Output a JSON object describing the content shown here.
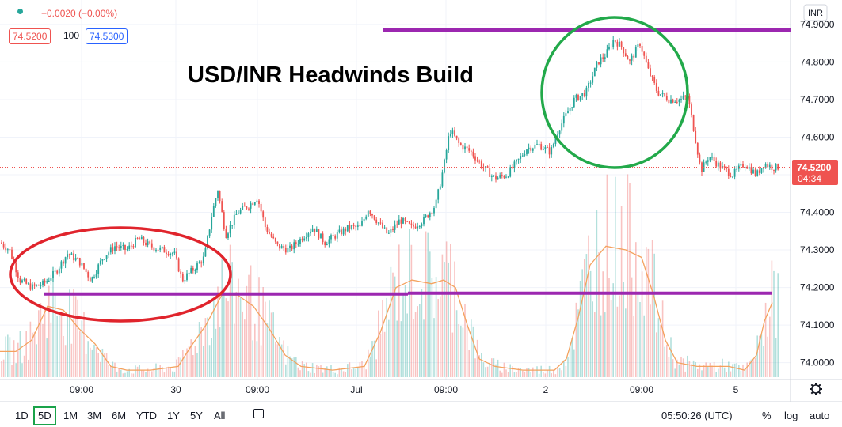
{
  "header": {
    "change": "−0.0020 (−0.00%)",
    "bid": "74.5200",
    "spread": "100",
    "ask": "74.5300"
  },
  "currency_badge": "INR",
  "price_tag": {
    "price": "74.5200",
    "countdown": "04:34"
  },
  "toolbar": {
    "timeframes": [
      "1D",
      "5D",
      "1M",
      "3M",
      "6M",
      "YTD",
      "1Y",
      "5Y",
      "All"
    ],
    "active": "5D",
    "time": "05:50:26 (UTC)",
    "percent": "%",
    "log": "log",
    "auto": "auto"
  },
  "colors": {
    "up": "#26a69a",
    "down": "#ef5350",
    "annotation_purple": "#9c27b0",
    "circle_red": "#e0242c",
    "circle_green": "#22a94a",
    "ma_line": "#f4a25e"
  },
  "chart_data": {
    "type": "candlestick",
    "title": "USD/INR Headwinds Build",
    "y_ticks": [
      74.0,
      74.1,
      74.2,
      74.3,
      74.4,
      74.5,
      74.6,
      74.7,
      74.8,
      74.9
    ],
    "y_tick_labels": [
      "74.0000",
      "74.1000",
      "74.2000",
      "74.3000",
      "74.4000",
      "74.5000",
      "74.6000",
      "74.7000",
      "74.8000",
      "74.9000"
    ],
    "ylim": [
      73.955,
      74.965
    ],
    "x_tick_labels": [
      "09:00",
      "30",
      "09:00",
      "Jul",
      "09:00",
      "2",
      "09:00",
      "5"
    ],
    "last_price": 74.52,
    "price_path": [
      [
        0,
        74.32
      ],
      [
        12,
        74.3
      ],
      [
        25,
        74.22
      ],
      [
        40,
        74.2
      ],
      [
        55,
        74.21
      ],
      [
        70,
        74.24
      ],
      [
        85,
        74.29
      ],
      [
        100,
        74.27
      ],
      [
        115,
        74.22
      ],
      [
        130,
        74.28
      ],
      [
        145,
        74.31
      ],
      [
        160,
        74.3
      ],
      [
        175,
        74.33
      ],
      [
        190,
        74.31
      ],
      [
        205,
        74.3
      ],
      [
        220,
        74.29
      ],
      [
        230,
        74.22
      ],
      [
        245,
        74.25
      ],
      [
        258,
        74.28
      ],
      [
        268,
        74.4
      ],
      [
        275,
        74.46
      ],
      [
        285,
        74.34
      ],
      [
        300,
        74.4
      ],
      [
        315,
        74.42
      ],
      [
        325,
        74.44
      ],
      [
        335,
        74.36
      ],
      [
        350,
        74.31
      ],
      [
        365,
        74.3
      ],
      [
        380,
        74.33
      ],
      [
        395,
        74.36
      ],
      [
        410,
        74.32
      ],
      [
        425,
        74.34
      ],
      [
        440,
        74.36
      ],
      [
        455,
        74.36
      ],
      [
        465,
        74.41
      ],
      [
        475,
        74.38
      ],
      [
        490,
        74.34
      ],
      [
        505,
        74.38
      ],
      [
        520,
        74.36
      ],
      [
        535,
        74.38
      ],
      [
        550,
        74.42
      ],
      [
        560,
        74.52
      ],
      [
        568,
        74.62
      ],
      [
        580,
        74.58
      ],
      [
        595,
        74.56
      ],
      [
        610,
        74.52
      ],
      [
        625,
        74.49
      ],
      [
        640,
        74.5
      ],
      [
        655,
        74.54
      ],
      [
        665,
        74.57
      ],
      [
        680,
        74.58
      ],
      [
        695,
        74.56
      ],
      [
        705,
        74.62
      ],
      [
        715,
        74.66
      ],
      [
        725,
        74.7
      ],
      [
        740,
        74.72
      ],
      [
        755,
        74.8
      ],
      [
        765,
        74.82
      ],
      [
        775,
        74.86
      ],
      [
        785,
        74.84
      ],
      [
        795,
        74.8
      ],
      [
        808,
        74.85
      ],
      [
        818,
        74.78
      ],
      [
        830,
        74.72
      ],
      [
        845,
        74.7
      ],
      [
        860,
        74.7
      ],
      [
        868,
        74.71
      ],
      [
        876,
        74.62
      ],
      [
        885,
        74.51
      ],
      [
        895,
        74.55
      ],
      [
        910,
        74.52
      ],
      [
        925,
        74.5
      ],
      [
        940,
        74.53
      ],
      [
        955,
        74.5
      ],
      [
        965,
        74.53
      ],
      [
        975,
        74.52
      ],
      [
        984,
        74.52
      ]
    ],
    "volume_ma": [
      [
        0,
        74.03
      ],
      [
        20,
        74.03
      ],
      [
        40,
        74.06
      ],
      [
        60,
        74.15
      ],
      [
        80,
        74.14
      ],
      [
        100,
        74.09
      ],
      [
        120,
        74.05
      ],
      [
        140,
        73.99
      ],
      [
        160,
        73.98
      ],
      [
        190,
        73.98
      ],
      [
        225,
        73.99
      ],
      [
        240,
        74.04
      ],
      [
        260,
        74.1
      ],
      [
        280,
        74.18
      ],
      [
        300,
        74.18
      ],
      [
        320,
        74.15
      ],
      [
        340,
        74.09
      ],
      [
        360,
        74.02
      ],
      [
        380,
        73.99
      ],
      [
        420,
        73.98
      ],
      [
        460,
        73.99
      ],
      [
        480,
        74.08
      ],
      [
        500,
        74.2
      ],
      [
        520,
        74.22
      ],
      [
        545,
        74.21
      ],
      [
        560,
        74.22
      ],
      [
        575,
        74.2
      ],
      [
        590,
        74.1
      ],
      [
        605,
        74.01
      ],
      [
        625,
        73.99
      ],
      [
        660,
        73.98
      ],
      [
        700,
        73.98
      ],
      [
        715,
        74.01
      ],
      [
        730,
        74.12
      ],
      [
        745,
        74.26
      ],
      [
        765,
        74.31
      ],
      [
        790,
        74.3
      ],
      [
        810,
        74.28
      ],
      [
        825,
        74.18
      ],
      [
        840,
        74.06
      ],
      [
        855,
        74.0
      ],
      [
        880,
        73.99
      ],
      [
        920,
        73.99
      ],
      [
        940,
        73.98
      ],
      [
        955,
        74.02
      ],
      [
        965,
        74.11
      ],
      [
        975,
        74.16
      ]
    ],
    "annotations": {
      "resistance_line": 74.885,
      "support_line": 74.185
    }
  }
}
